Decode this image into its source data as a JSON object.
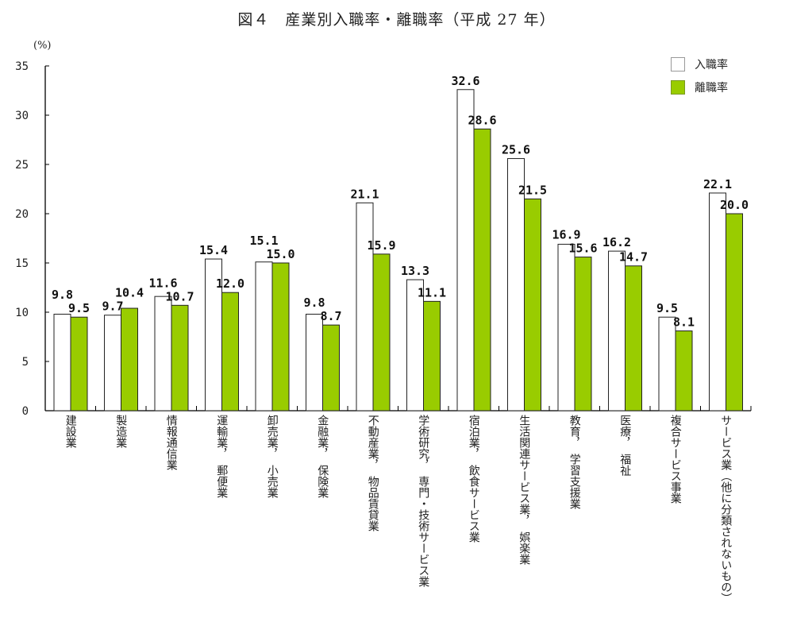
{
  "chart_data": {
    "type": "bar",
    "title": "図４　産業別入職率・離職率（平成 27 年）",
    "ylabel": "(%)",
    "ylim": [
      0,
      35
    ],
    "yticks": [
      0,
      5,
      10,
      15,
      20,
      25,
      30,
      35
    ],
    "grid": false,
    "legend_position": "top-right",
    "categories": [
      "建設業",
      "製造業",
      "情報通信業",
      "運輸業，　郵便業",
      "卸売業，　小売業",
      "金融業，　保険業",
      "不動産業，　物品賃貸業",
      "学術研究，　専門・技術サービス業",
      "宿泊業，　飲食サービス業",
      "生活関連サービス業，　娯楽業",
      "教育，　学習支援業",
      "医療，　福祉",
      "複合サービス事業",
      "サービス業（他に分類されないもの）"
    ],
    "series": [
      {
        "name": "入職率",
        "color": "#ffffff",
        "values": [
          9.8,
          9.7,
          11.6,
          15.4,
          15.1,
          9.8,
          21.1,
          13.3,
          32.6,
          25.6,
          16.9,
          16.2,
          9.5,
          22.1
        ]
      },
      {
        "name": "離職率",
        "color": "#99cc00",
        "values": [
          9.5,
          10.4,
          10.7,
          12.0,
          15.0,
          8.7,
          15.9,
          11.1,
          28.6,
          21.5,
          15.6,
          14.7,
          8.1,
          20.0
        ]
      }
    ]
  }
}
